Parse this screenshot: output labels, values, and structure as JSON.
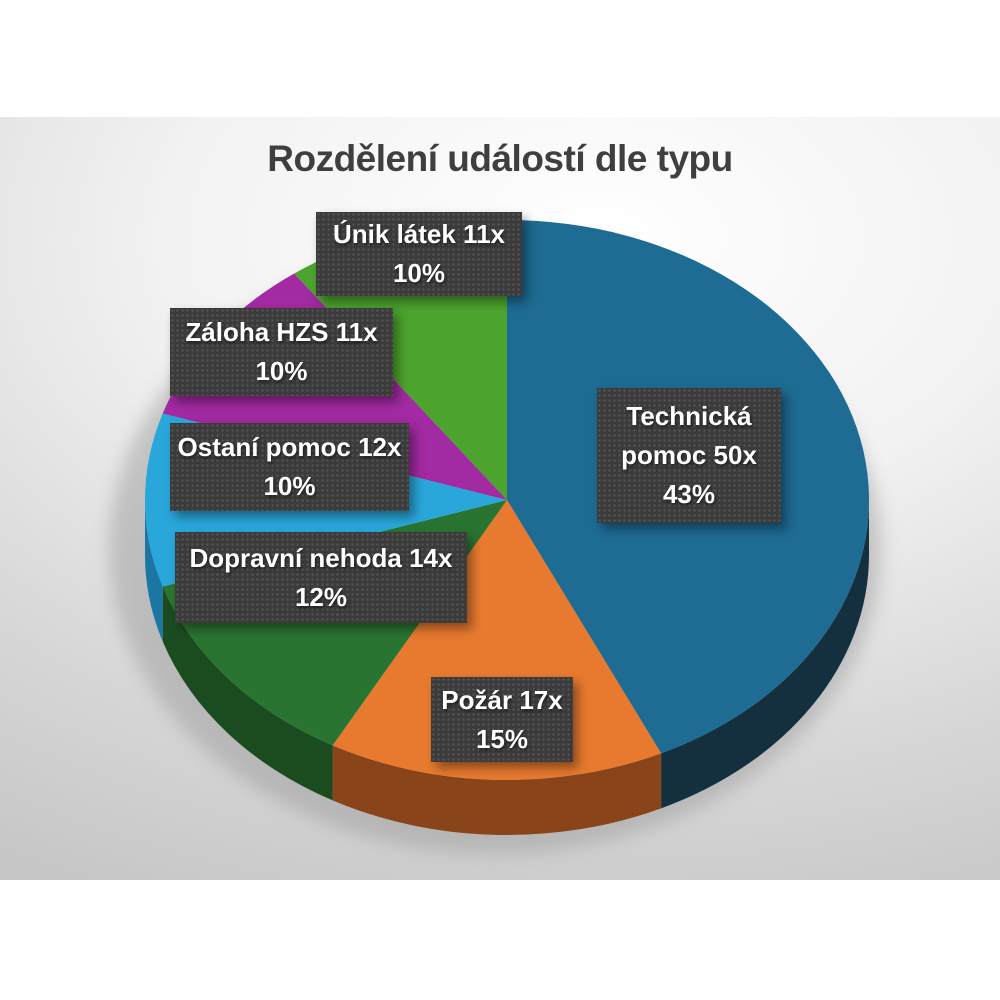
{
  "title": "Rozdělení událostí dle typu",
  "colors": {
    "title_color": "#3f3f3f",
    "callout_bg": "#3b3b3b",
    "callout_text": "#ffffff",
    "slide_background_edge": "#c6c6c6",
    "slide_background_center": "#ffffff",
    "shadow": "#9b9b9b"
  },
  "chart_data": {
    "type": "pie",
    "style": "3d",
    "title": "Rozdělení událostí dle typu",
    "start": "top",
    "direction": "clockwise",
    "legend": "none",
    "labels_style": "dark callout boxes with white bold text, two lines: name+count and percent",
    "total_pct": 100,
    "slices": [
      {
        "id": "technicka-pomoc",
        "label": "Technická pomoc",
        "count": "50x",
        "pct": 43,
        "label_line": "Technická pomoc 50x",
        "pct_line": "43%",
        "color": "#1E6B94",
        "side_color": "#14303F"
      },
      {
        "id": "pozar",
        "label": "Požár",
        "count": "17x",
        "pct": 15,
        "label_line": "Požár 17x",
        "pct_line": "15%",
        "color": "#E87A2F",
        "side_color": "#8A4419"
      },
      {
        "id": "dopravni-nehoda",
        "label": "Dopravní nehoda",
        "count": "14x",
        "pct": 12,
        "label_line": "Dopravní nehoda 14x",
        "pct_line": "12%",
        "color": "#2A7431",
        "side_color": "#1B4C20"
      },
      {
        "id": "ostani-pomoc",
        "label": "Ostaní pomoc",
        "count": "12x",
        "pct": 10,
        "label_line": "Ostaní pomoc 12x",
        "pct_line": "10%",
        "color": "#29A7DB",
        "side_color": "#1B76A3"
      },
      {
        "id": "zaloha-hzs",
        "label": "Záloha HZS",
        "count": "11x",
        "pct": 10,
        "label_line": "Záloha HZS 11x",
        "pct_line": "10%",
        "color": "#A22AA2",
        "side_color": "#6E1C6E"
      },
      {
        "id": "unik-latek",
        "label": "Únik látek",
        "count": "11x",
        "pct": 10,
        "label_line": "Únik látek  11x",
        "pct_line": "10%",
        "color": "#4CA42E",
        "side_color": "#2F6E1E"
      }
    ]
  }
}
